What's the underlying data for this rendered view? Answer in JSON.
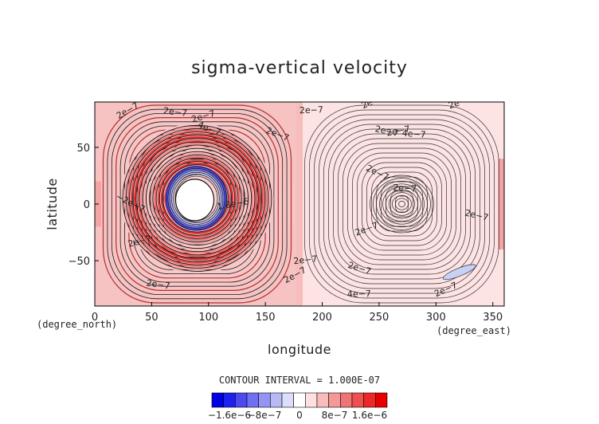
{
  "chart_data": {
    "type": "heatmap",
    "title": "sigma-vertical velocity",
    "xlabel": "longitude",
    "ylabel": "latitude",
    "x_unit": "(degree_east)",
    "y_unit": "(degree_north)",
    "xlim": [
      0,
      360
    ],
    "ylim": [
      -90,
      90
    ],
    "x_ticks": [
      "0",
      "50",
      "100",
      "150",
      "200",
      "250",
      "300",
      "350"
    ],
    "x_tick_values": [
      0,
      50,
      100,
      150,
      200,
      250,
      300,
      350
    ],
    "y_ticks": [
      "50",
      "0",
      "−50"
    ],
    "y_tick_values": [
      50,
      0,
      -50
    ],
    "contour_interval_text": "CONTOUR INTERVAL = 1.000E-07",
    "colorbar": {
      "labels": [
        "−1.6e−6",
        "−8e−7",
        "0",
        "8e−7",
        "1.6e−6"
      ],
      "label_values": [
        -1.6e-06,
        -8e-07,
        0,
        8e-07,
        1.6e-06
      ],
      "range": [
        -2e-06,
        2e-06
      ],
      "colors": [
        "#0000e6",
        "#2020ee",
        "#4a4af0",
        "#6f6ff2",
        "#9494f4",
        "#b9b9f8",
        "#dcdcfb",
        "#ffffff",
        "#fde0e0",
        "#f8bcbc",
        "#f49898",
        "#f07474",
        "#ee5050",
        "#ec2828",
        "#e80000"
      ]
    },
    "contour_labels": [
      "2e−7",
      "2e−7",
      "2e−7",
      "2e−7",
      "2e−7",
      "2e−7",
      "2e−7",
      "2e−7",
      "2e−7",
      "2e−7",
      "2e−7",
      "2e−7",
      "2e−7",
      "2e−7",
      "2e−7",
      "2e−7",
      "4e−7",
      "4e−7",
      "2e−7",
      "2e−7",
      "1.8e−6",
      "−2e−7",
      "4e−7",
      "2e−7"
    ],
    "features": [
      {
        "name": "upwelling-ring",
        "lon": 90,
        "lat": 5,
        "peak": -1.8e-06
      },
      {
        "name": "weak-center",
        "lon": 270,
        "lat": 0,
        "peak": 2e-07
      },
      {
        "name": "blue-patch",
        "lon": 315,
        "lat": -60,
        "peak": -2e-07
      }
    ]
  }
}
